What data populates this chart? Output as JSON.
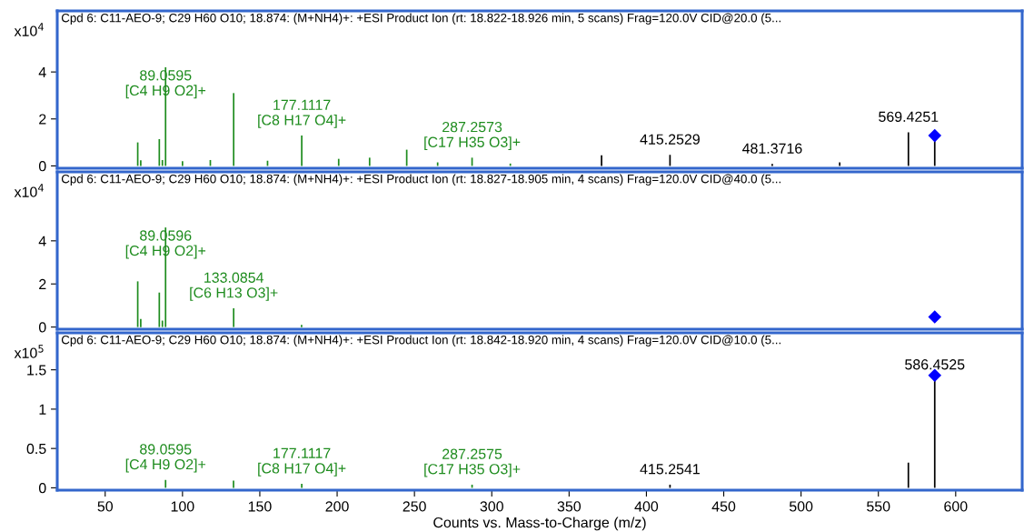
{
  "chart_data": [
    {
      "type": "bar",
      "title": "Cpd 6: C11-AEO-9; C29 H60 O10; 18.874: (M+NH4)+: +ESI Product Ion (rt: 18.822-18.926 min, 5 scans) Frag=120.0V CID@20.0 (5...",
      "xlim": [
        19,
        643
      ],
      "ylim": [
        -0.1,
        6.6
      ],
      "yticks": [
        0,
        2,
        4
      ],
      "tick_labels": "y",
      "series": [
        {
          "color": "#1e8c1e",
          "x": [
            71.05,
            73.0,
            85.0,
            87.0,
            89.0595,
            100.0,
            118.0,
            133.09,
            155.0,
            177.1117,
            201.0,
            221.0,
            245.0,
            265.0,
            287.2573,
            312.0
          ],
          "values": [
            1.0,
            0.24,
            1.14,
            0.25,
            4.2,
            0.2,
            0.25,
            3.1,
            0.22,
            1.29,
            0.3,
            0.35,
            0.69,
            0.15,
            0.35,
            0.1
          ]
        },
        {
          "color": "#000000",
          "x": [
            371.0,
            415.2529,
            481.3716,
            525.0,
            569.4251,
            586.4525
          ],
          "values": [
            0.45,
            0.47,
            0.08,
            0.15,
            1.43,
            1.05
          ]
        },
        {
          "type": "scatter",
          "marker": "diamond",
          "color": "#0000ff",
          "x": [
            586.4525
          ],
          "values": [
            1.29
          ]
        }
      ],
      "annotations": [
        "x10$^{4}$",
        {
          "text": "89.0595\n[C4 H9 O2]+",
          "x": 89.0595,
          "y": 4.2
        },
        {
          "text": "177.1117\n[C8 H17 O4]+",
          "x": 177.1117,
          "y": 1.29
        },
        {
          "text": "287.2573\n[C17 H35 O3]+",
          "x": 287.2573,
          "y": 0.35
        },
        {
          "text": "415.2529",
          "x": 415.2529,
          "y": 0.47
        },
        {
          "text": "481.3716",
          "x": 481.3716,
          "y": 0.08
        },
        {
          "text": "569.4251",
          "x": 569.4251,
          "y": 1.43
        }
      ]
    },
    {
      "type": "bar",
      "title": "Cpd 6: C11-AEO-9; C29 H60 O10; 18.874: (M+NH4)+: +ESI Product Ion (rt: 18.827-18.905 min, 4 scans) Frag=120.0V CID@40.0 (5...",
      "xlim": [
        19,
        643
      ],
      "ylim": [
        -0.1,
        7.2
      ],
      "yticks": [
        0,
        2,
        4
      ],
      "tick_labels": "y",
      "series": [
        {
          "color": "#1e8c1e",
          "x": [
            71.05,
            73.0,
            85.0,
            87.0,
            89.0596,
            133.0854,
            177.0
          ],
          "values": [
            2.12,
            0.37,
            1.6,
            0.3,
            4.62,
            0.87,
            0.1
          ]
        },
        {
          "type": "scatter",
          "marker": "diamond",
          "color": "#0000ff",
          "x": [
            586.45
          ],
          "values": [
            0.47
          ]
        }
      ],
      "annotations": [
        "x10$^{4}$",
        {
          "text": "89.0596\n[C4 H9 O2]+",
          "x": 89.0596,
          "y": 4.62
        },
        {
          "text": "133.0854\n[C6 H13 O3]+",
          "x": 133.0854,
          "y": 0.87
        }
      ]
    },
    {
      "type": "bar",
      "title": "Cpd 6: C11-AEO-9; C29 H60 O10; 18.874: (M+NH4)+: +ESI Product Ion (rt: 18.842-18.920 min, 4 scans) Frag=120.0V CID@10.0 (5...",
      "xlabel": "Counts vs. Mass-to-Charge (m/z)",
      "xlim": [
        19,
        643
      ],
      "ylim": [
        -0.03,
        1.97
      ],
      "yticks": [
        0,
        0.5,
        1,
        1.5
      ],
      "xticks": [
        50,
        100,
        150,
        200,
        250,
        300,
        350,
        400,
        450,
        500,
        550,
        600
      ],
      "series": [
        {
          "color": "#1e8c1e",
          "x": [
            89.0595,
            133.0,
            177.1117,
            287.2575
          ],
          "values": [
            0.1,
            0.09,
            0.05,
            0.04
          ]
        },
        {
          "color": "#000000",
          "x": [
            415.2541,
            569.4,
            586.4525
          ],
          "values": [
            0.04,
            0.32,
            1.37
          ]
        },
        {
          "type": "scatter",
          "marker": "diamond",
          "color": "#0000ff",
          "x": [
            586.4525
          ],
          "values": [
            1.43
          ]
        }
      ],
      "annotations": [
        "x10$^{5}$",
        {
          "text": "89.0595\n[C4 H9 O2]+",
          "x": 89.0595,
          "y": 0.1
        },
        {
          "text": "177.1117\n[C8 H17 O4]+",
          "x": 177.1117,
          "y": 0.05
        },
        {
          "text": "287.2575\n[C17 H35 O3]+",
          "x": 287.2575,
          "y": 0.04
        },
        {
          "text": "415.2541",
          "x": 415.2541,
          "y": 0.04
        },
        {
          "text": "586.4525",
          "x": 586.4525,
          "y": 1.37
        }
      ]
    }
  ]
}
